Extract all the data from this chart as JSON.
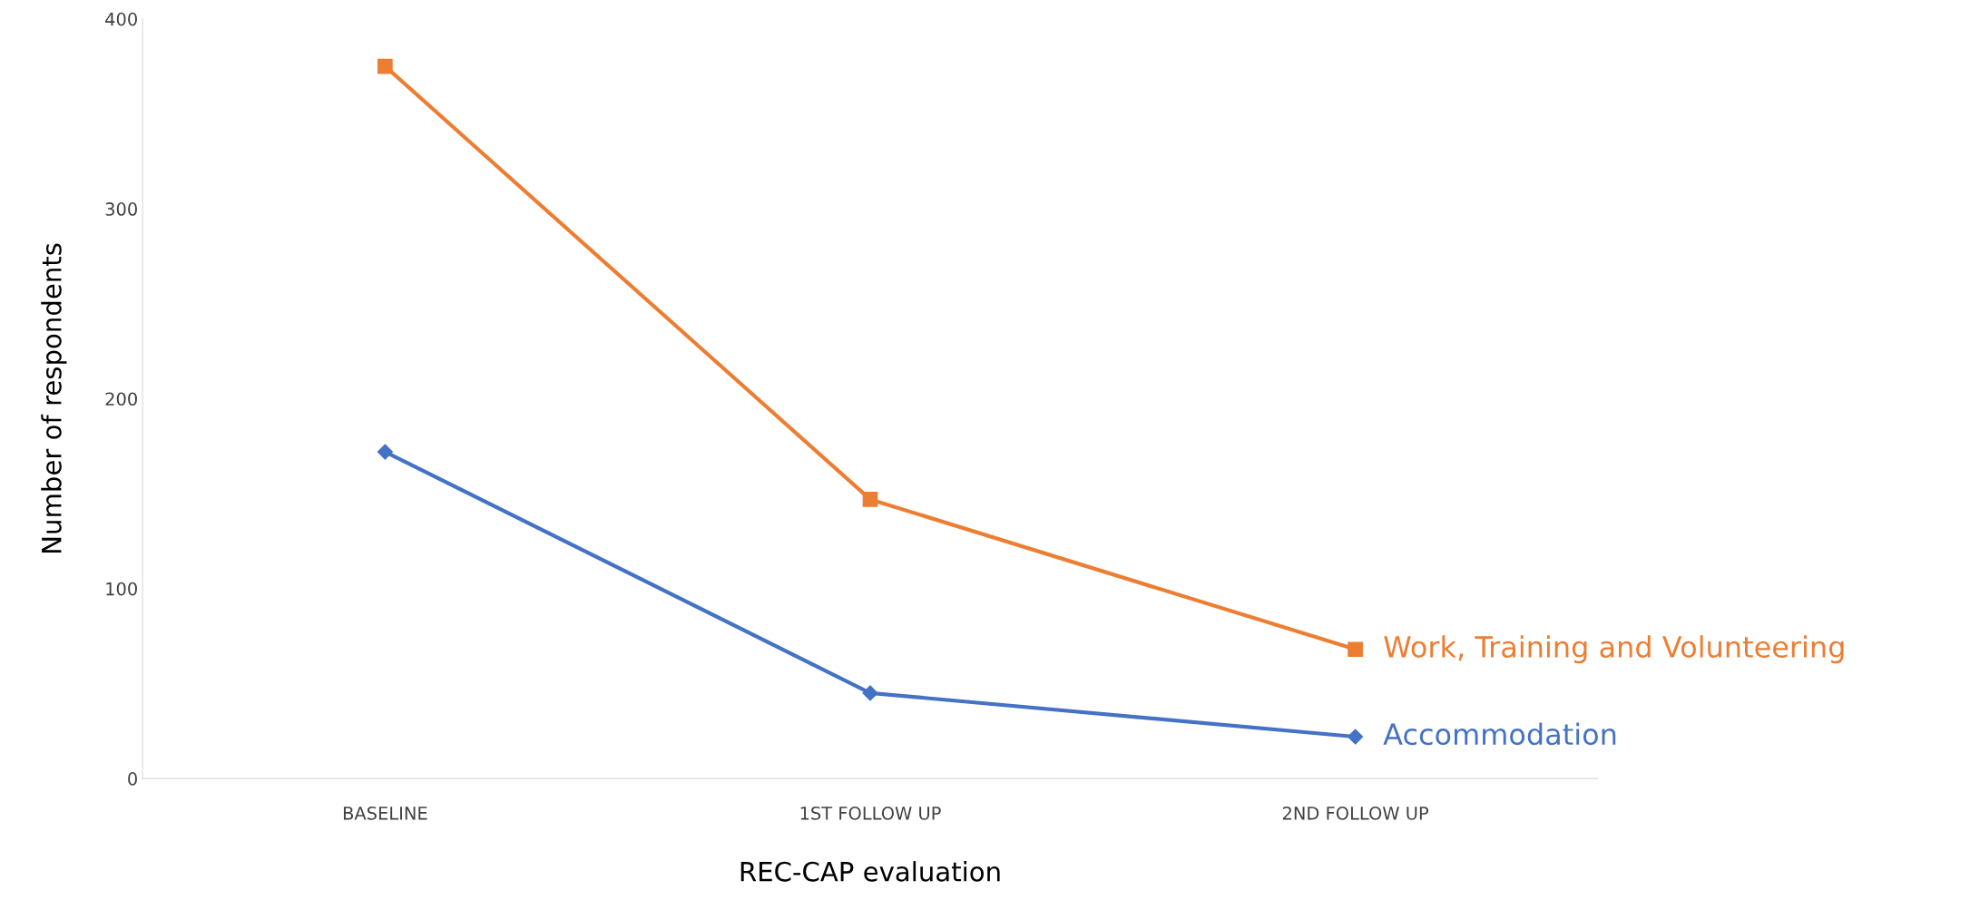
{
  "chart_data": {
    "type": "line",
    "xlabel": "REC-CAP evaluation",
    "ylabel": "Number of respondents",
    "categories": [
      "BASELINE",
      "1ST FOLLOW UP",
      "2ND FOLLOW UP"
    ],
    "series": [
      {
        "name": "Work, Training and Volunteering",
        "color": "#ed7d31",
        "marker": "square",
        "values": [
          375,
          147,
          68
        ]
      },
      {
        "name": "Accommodation",
        "color": "#4472c4",
        "marker": "diamond",
        "values": [
          172,
          45,
          22
        ]
      }
    ],
    "ylim": [
      0,
      400
    ],
    "yticks": [
      0,
      100,
      200,
      300,
      400
    ],
    "grid": false,
    "legend": false,
    "line_style": "solid"
  }
}
